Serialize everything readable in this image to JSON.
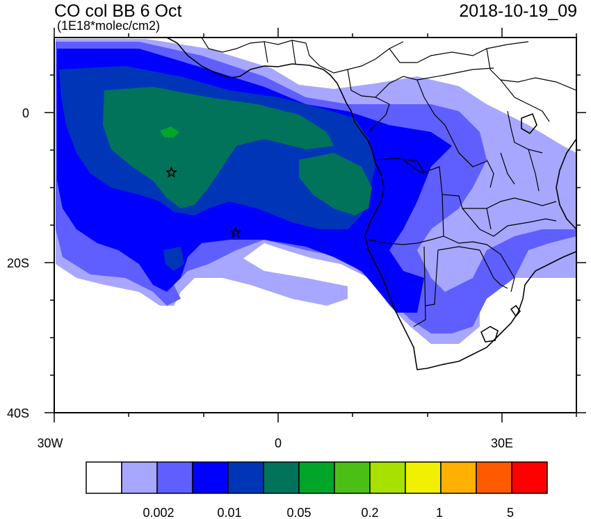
{
  "header": {
    "title": "CO col BB 6 Oct",
    "units": "(1E18*molec/cm2)",
    "timestamp": "2018-10-19_09"
  },
  "axes": {
    "y_ticks": [
      {
        "label": "0",
        "lat": 0
      },
      {
        "label": "20S",
        "lat": -20
      },
      {
        "label": "40S",
        "lat": -40
      }
    ],
    "x_ticks": [
      {
        "label": "30W",
        "lon": -30
      },
      {
        "label": "0",
        "lon": 0
      },
      {
        "label": "30E",
        "lon": 30
      }
    ],
    "lon_range": [
      -30,
      40
    ],
    "lat_range": [
      -40,
      10
    ]
  },
  "colorbar": {
    "colors": [
      "#ffffff",
      "#a7a7ff",
      "#5f5fff",
      "#0000ff",
      "#0035b8",
      "#00735a",
      "#00a52a",
      "#4cbf16",
      "#a8e000",
      "#f0f000",
      "#ffb000",
      "#ff5a00",
      "#ff0000"
    ],
    "labels": [
      "0.002",
      "0.01",
      "0.05",
      "0.2",
      "1",
      "5"
    ]
  },
  "markers": [
    {
      "name": "star-marker-1",
      "lon": -14.3,
      "lat": -8
    },
    {
      "name": "star-marker-2",
      "lon": -5.7,
      "lat": -16
    }
  ]
}
